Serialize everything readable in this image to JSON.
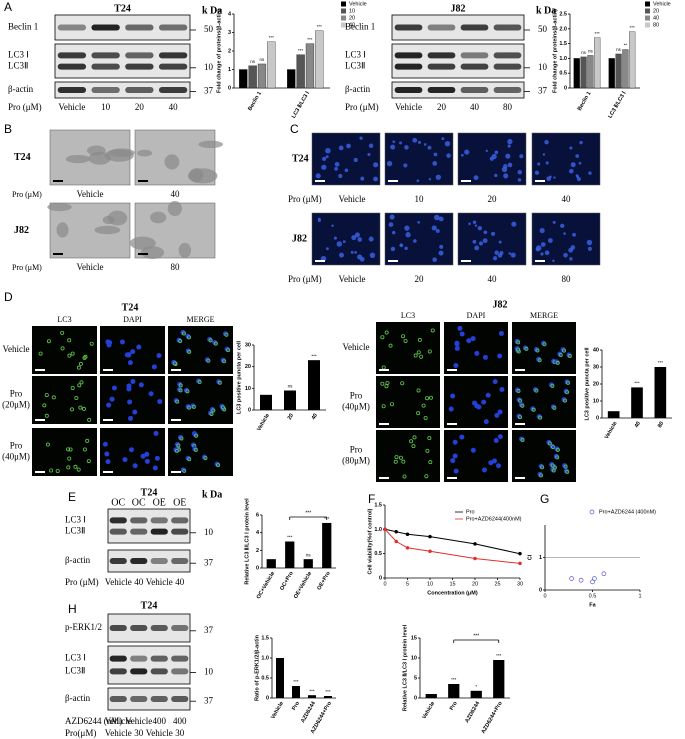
{
  "panel_labels": [
    "A",
    "B",
    "C",
    "D",
    "E",
    "F",
    "G",
    "H"
  ],
  "blots": [
    {
      "title": "T24",
      "unit": "k Da",
      "rows": [
        {
          "labels": [
            "Beclin 1"
          ],
          "marker": "50"
        },
        {
          "labels": [
            "LC3 Ⅰ",
            "LC3Ⅱ"
          ],
          "marker": "10"
        },
        {
          "labels": [
            "β-actin"
          ],
          "marker": "37"
        }
      ],
      "conditions": [
        {
          "name": "Pro (μM)",
          "levels": [
            "Vehicle",
            "10",
            "20",
            "40"
          ]
        }
      ]
    },
    {
      "title": "J82",
      "unit": "k Da",
      "rows": [
        {
          "labels": [
            "Beclin 1"
          ],
          "marker": "50"
        },
        {
          "labels": [
            "LC3 Ⅰ",
            "LC3Ⅱ"
          ],
          "marker": "10"
        },
        {
          "labels": [
            "β-actin"
          ],
          "marker": "37"
        }
      ],
      "conditions": [
        {
          "name": "Pro (μM)",
          "levels": [
            "Vehicle",
            "20",
            "40",
            "80"
          ]
        }
      ]
    },
    {
      "title": "T24",
      "unit": "k Da",
      "lanes": [
        "OC",
        "OC",
        "OE",
        "OE"
      ],
      "rows": [
        {
          "labels": [
            "LC3 Ⅰ",
            "LC3Ⅱ"
          ],
          "marker": "10"
        },
        {
          "labels": [
            "β-actin"
          ],
          "marker": "37"
        }
      ],
      "conditions": [
        {
          "name": "Pro (μM)",
          "levels": [
            "Vehicle",
            "40",
            "Vehicle",
            "40"
          ]
        }
      ]
    },
    {
      "title": "T24",
      "rows": [
        {
          "labels": [
            "p-ERK1/2"
          ],
          "marker": "37"
        },
        {
          "labels": [
            "LC3 Ⅰ",
            "LC3Ⅱ"
          ],
          "marker": "10"
        },
        {
          "labels": [
            "β-actin"
          ],
          "marker": "37"
        }
      ],
      "conditions": [
        {
          "name": "AZD6244 (nM)",
          "levels": [
            "Vehicle",
            "Vehicle",
            "400",
            "400"
          ]
        },
        {
          "name": "Pro(μM)",
          "levels": [
            "Vehicle",
            "30",
            "Vehicle",
            "30"
          ]
        }
      ]
    }
  ],
  "tem": {
    "rows": [
      "T24",
      "J82"
    ],
    "conditions": [
      {
        "name": "Pro (μM)",
        "levels": [
          "Vehicle",
          "40"
        ]
      },
      {
        "name": "Pro (μM)",
        "levels": [
          "Vehicle",
          "80"
        ]
      }
    ]
  },
  "fluorescence": {
    "rows": [
      "T24",
      "J82"
    ],
    "conditions": [
      {
        "name": "Pro (μM)",
        "levels": [
          "Vehicle",
          "10",
          "20",
          "40"
        ]
      },
      {
        "name": "Pro (μM)",
        "levels": [
          "Vehicle",
          "20",
          "40",
          "80"
        ]
      }
    ]
  },
  "immunofluorescence": [
    {
      "title": "T24",
      "channels": [
        "LC3",
        "DAPI",
        "MERGE"
      ],
      "rows": [
        [
          "Vehicle"
        ],
        [
          "Pro",
          "(20μM)"
        ],
        [
          "Pro",
          "(40μM)"
        ]
      ]
    },
    {
      "title": "J82",
      "channels": [
        "LC3",
        "DAPI",
        "MERGE"
      ],
      "rows": [
        [
          "Vehicle"
        ],
        [
          "Pro",
          "(40μM)"
        ],
        [
          "Pro",
          "(80μM)"
        ]
      ]
    }
  ],
  "chart_data": [
    {
      "type": "bar",
      "ylabel": "Fold change of proteins(β-actin)",
      "categories": [
        "Beclin 1",
        "LC3 Ⅱ/LC3 Ⅰ"
      ],
      "legend": "upper right",
      "series": [
        {
          "name": "Vehicle",
          "color": "#000000",
          "values": [
            1,
            1
          ]
        },
        {
          "name": "10",
          "color": "#555555",
          "values": [
            1.2,
            1.8
          ],
          "labels": [
            "ns",
            "***"
          ]
        },
        {
          "name": "20",
          "color": "#888888",
          "values": [
            1.3,
            2.4
          ],
          "labels": [
            "ns",
            "***"
          ]
        },
        {
          "name": "40",
          "color": "#c8c8c8",
          "values": [
            2.5,
            3.1
          ],
          "labels": [
            "***",
            "***"
          ]
        }
      ],
      "ylim": [
        0,
        4
      ],
      "yticks": [
        0,
        1,
        2,
        3,
        4
      ]
    },
    {
      "type": "bar",
      "ylabel": "Fold change of proteins(β-actin)",
      "categories": [
        "Beclin 1",
        "LC3 Ⅱ/LC3 Ⅰ"
      ],
      "legend": "upper right",
      "series": [
        {
          "name": "Vehicle",
          "color": "#000000",
          "values": [
            1,
            1
          ]
        },
        {
          "name": "20",
          "color": "#555555",
          "values": [
            1.05,
            1.15
          ],
          "labels": [
            "ns",
            "ns"
          ]
        },
        {
          "name": "40",
          "color": "#888888",
          "values": [
            1.1,
            1.3
          ],
          "labels": [
            "ns",
            "**"
          ]
        },
        {
          "name": "80",
          "color": "#c8c8c8",
          "values": [
            1.7,
            1.9
          ],
          "labels": [
            "***",
            "***"
          ]
        }
      ],
      "ylim": [
        0,
        2.5
      ],
      "yticks": [
        0,
        0.5,
        {
          "value": 1,
          "label": "1.0"
        },
        1.5,
        {
          "value": 2,
          "label": "2.0"
        },
        2.5
      ]
    },
    {
      "type": "bar",
      "ylabel": "LC3 positive puncta per cell",
      "categories": [
        "Vehicle",
        "20",
        "40"
      ],
      "values": [
        7,
        9,
        23
      ],
      "labels": [
        null,
        "ns",
        "***"
      ],
      "color": "#000000",
      "ylim": [
        0,
        30
      ],
      "yticks": [
        0,
        10,
        20,
        30
      ]
    },
    {
      "type": "bar",
      "ylabel": "LC3 positive puncta per cell",
      "categories": [
        "Vehicle",
        "40",
        "80"
      ],
      "values": [
        4,
        18,
        30
      ],
      "labels": [
        null,
        "***",
        "***"
      ],
      "color": "#000000",
      "ylim": [
        0,
        40
      ],
      "yticks": [
        0,
        10,
        20,
        30,
        40
      ]
    },
    {
      "type": "bar",
      "ylabel": "Relative LC3 Ⅱ/LC3 Ⅰ protein level",
      "categories": [
        "OC+Vehicle",
        "OC+Pro",
        "OE+Vehicle",
        "OE+Pro"
      ],
      "values": [
        1,
        3,
        1,
        5.1
      ],
      "labels": [
        null,
        "***",
        "ns",
        "***"
      ],
      "bracket_label": "***",
      "color": "#000000",
      "ylim": [
        0,
        6
      ],
      "yticks": [
        0,
        2,
        4,
        6
      ]
    },
    {
      "type": "line",
      "xlabel": "Concentration (μM)",
      "ylabel": "Cell viability(%of control)",
      "x": [
        0,
        2.5,
        5,
        10,
        20,
        30
      ],
      "legend": "upper right",
      "series": [
        {
          "name": "Pro",
          "color": "#000000",
          "values": [
            1,
            0.95,
            0.9,
            0.85,
            0.7,
            0.5
          ]
        },
        {
          "name": "Pro+AZD6244(400nM)",
          "color": "#e0302a",
          "values": [
            1,
            0.75,
            0.62,
            0.55,
            0.4,
            0.3
          ]
        }
      ],
      "xlim": [
        0,
        30
      ],
      "xticks": [
        0,
        5,
        10,
        15,
        20,
        25,
        30
      ],
      "ylim": [
        0,
        1.5
      ],
      "yticks": [
        0,
        0.5,
        {
          "value": 1,
          "label": "1.0"
        },
        1.5
      ]
    },
    {
      "type": "scatter",
      "xlabel": "Fa",
      "ylabel": "CI",
      "legend": "upper right",
      "series": [
        {
          "name": "Pro+AZD6244 (400nM)",
          "color": "#5555cc",
          "x": [
            0.28,
            0.38,
            0.5,
            0.52,
            0.62
          ],
          "values": [
            0.35,
            0.3,
            0.25,
            0.35,
            0.5
          ]
        }
      ],
      "hline": 1,
      "xlim": [
        0,
        1
      ],
      "xticks": [
        0,
        0.5,
        1
      ],
      "ylim": [
        0,
        2
      ],
      "yticks": [
        0,
        1
      ]
    },
    {
      "type": "bar",
      "ylabel": "Ratio of p-ERK1/2/β-actin",
      "categories": [
        "Vehicle",
        "Pro",
        "AZD6244",
        "AZD6244+Pro"
      ],
      "values": [
        1,
        0.3,
        0.07,
        0.05
      ],
      "labels": [
        null,
        "***",
        "***",
        "***"
      ],
      "color": "#000000",
      "ylim": [
        0,
        1.5
      ],
      "yticks": [
        0,
        0.5,
        {
          "value": 1,
          "label": "1.0"
        },
        1.5
      ]
    },
    {
      "type": "bar",
      "ylabel": "Relative LC3 Ⅱ/LC3 Ⅰ protein level",
      "categories": [
        "Vehicle",
        "Pro",
        "AZD6244",
        "AZD6244+Pro"
      ],
      "values": [
        1,
        3.5,
        1.8,
        9.5
      ],
      "labels": [
        null,
        "***",
        "*",
        "***"
      ],
      "bracket_label": "***",
      "color": "#000000",
      "ylim": [
        0,
        15
      ],
      "yticks": [
        0,
        5,
        10,
        15
      ]
    }
  ]
}
